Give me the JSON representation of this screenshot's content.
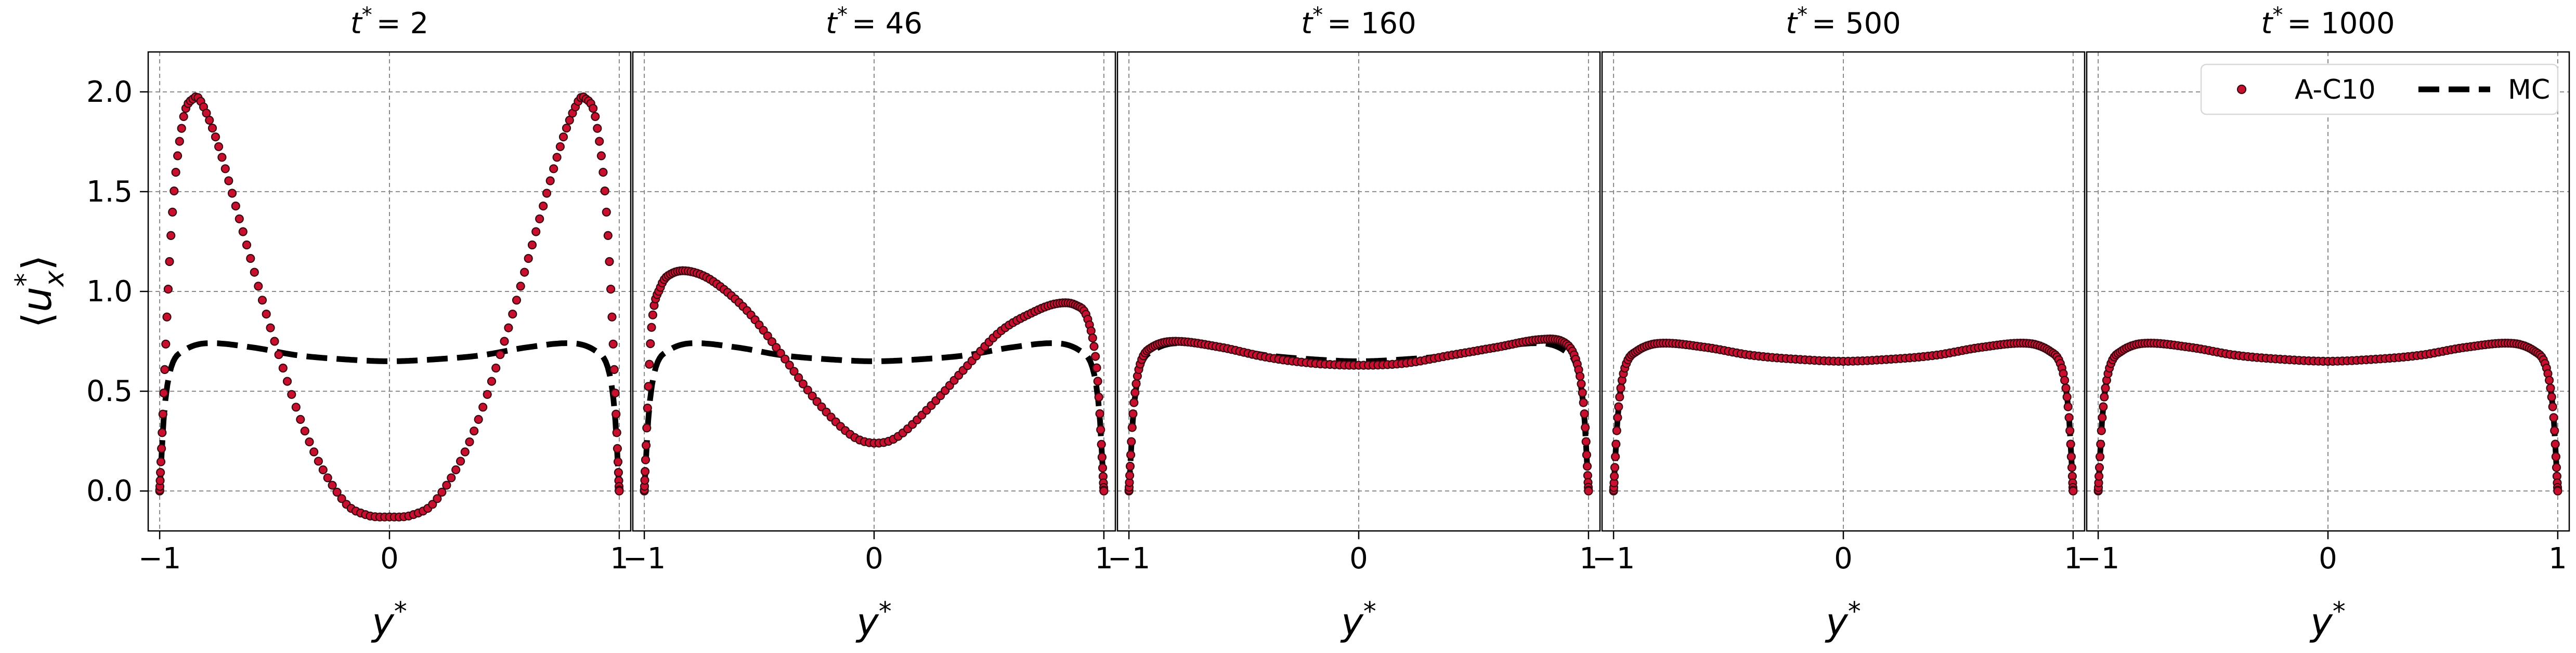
{
  "figure": {
    "ylabel_text": "⟨u*x⟩",
    "colors": {
      "ac10": "#c8102e",
      "ac10_edge": "#3a0a12",
      "mc": "#000000",
      "grid": "#8a8a8a"
    },
    "legend": {
      "placement": "top-right of last panel",
      "entries": [
        "A-C10",
        "MC"
      ]
    }
  },
  "chart_data": [
    {
      "type": "scatter+line",
      "title": "t* = 2",
      "xlabel": "y*",
      "ylabel": "⟨u*x⟩",
      "xlim": [
        -1.05,
        1.05
      ],
      "ylim": [
        -0.2,
        2.2
      ],
      "x_ticks": [
        -1,
        0,
        1
      ],
      "x_tick_labels": [
        "−1",
        "0",
        "1"
      ],
      "y_ticks": [
        0.0,
        0.5,
        1.0,
        1.5,
        2.0
      ],
      "y_tick_labels": [
        "0.0",
        "0.5",
        "1.0",
        "1.5",
        "2.0"
      ],
      "grid": true,
      "series": [
        {
          "name": "A-C10",
          "style": "markers",
          "x": [
            -1.0,
            -0.95,
            -0.9,
            -0.85,
            -0.82,
            -0.75,
            -0.65,
            -0.5,
            -0.35,
            -0.2,
            -0.1,
            0.0,
            0.1,
            0.2,
            0.35,
            0.5,
            0.65,
            0.75,
            0.82,
            0.85,
            0.9,
            0.95,
            1.0
          ],
          "y": [
            0.0,
            1.3,
            1.85,
            1.97,
            1.95,
            1.75,
            1.35,
            0.75,
            0.25,
            -0.05,
            -0.12,
            -0.13,
            -0.12,
            -0.05,
            0.25,
            0.75,
            1.35,
            1.75,
            1.95,
            1.97,
            1.85,
            1.3,
            0.0
          ]
        },
        {
          "name": "MC",
          "style": "dashed",
          "x": [
            -1.0,
            -0.98,
            -0.95,
            -0.9,
            -0.8,
            -0.6,
            -0.4,
            -0.2,
            0.0,
            0.2,
            0.4,
            0.6,
            0.8,
            0.9,
            0.95,
            0.98,
            1.0
          ],
          "y": [
            0.0,
            0.4,
            0.62,
            0.7,
            0.74,
            0.72,
            0.68,
            0.66,
            0.65,
            0.66,
            0.68,
            0.72,
            0.74,
            0.7,
            0.62,
            0.4,
            0.0
          ]
        }
      ]
    },
    {
      "type": "scatter+line",
      "title": "t* = 46",
      "xlabel": "y*",
      "xlim": [
        -1.05,
        1.05
      ],
      "ylim": [
        -0.2,
        2.2
      ],
      "x_ticks": [
        -1,
        0,
        1
      ],
      "x_tick_labels": [
        "−1",
        "0",
        "1"
      ],
      "grid": true,
      "series": [
        {
          "name": "A-C10",
          "style": "markers",
          "x": [
            -1.0,
            -0.97,
            -0.93,
            -0.88,
            -0.8,
            -0.7,
            -0.55,
            -0.4,
            -0.25,
            -0.1,
            0.0,
            0.1,
            0.25,
            0.4,
            0.55,
            0.7,
            0.8,
            0.88,
            0.93,
            0.97,
            1.0
          ],
          "y": [
            0.0,
            0.8,
            1.02,
            1.09,
            1.1,
            1.05,
            0.9,
            0.68,
            0.45,
            0.28,
            0.24,
            0.27,
            0.43,
            0.62,
            0.8,
            0.9,
            0.94,
            0.93,
            0.86,
            0.6,
            0.0
          ]
        },
        {
          "name": "MC",
          "style": "dashed",
          "x": [
            -1.0,
            -0.98,
            -0.95,
            -0.9,
            -0.8,
            -0.6,
            -0.4,
            -0.2,
            0.0,
            0.2,
            0.4,
            0.6,
            0.8,
            0.9,
            0.95,
            0.98,
            1.0
          ],
          "y": [
            0.0,
            0.4,
            0.62,
            0.7,
            0.74,
            0.72,
            0.68,
            0.66,
            0.65,
            0.66,
            0.68,
            0.72,
            0.74,
            0.7,
            0.62,
            0.4,
            0.0
          ]
        }
      ]
    },
    {
      "type": "scatter+line",
      "title": "t* = 160",
      "xlabel": "y*",
      "xlim": [
        -1.05,
        1.05
      ],
      "ylim": [
        -0.2,
        2.2
      ],
      "x_ticks": [
        -1,
        0,
        1
      ],
      "x_tick_labels": [
        "−1",
        "0",
        "1"
      ],
      "grid": true,
      "series": [
        {
          "name": "A-C10",
          "style": "markers",
          "x": [
            -1.0,
            -0.98,
            -0.95,
            -0.9,
            -0.8,
            -0.6,
            -0.4,
            -0.2,
            0.0,
            0.2,
            0.4,
            0.6,
            0.8,
            0.9,
            0.95,
            0.98,
            1.0
          ],
          "y": [
            0.0,
            0.42,
            0.64,
            0.72,
            0.75,
            0.72,
            0.67,
            0.64,
            0.63,
            0.64,
            0.68,
            0.72,
            0.76,
            0.74,
            0.64,
            0.42,
            0.0
          ]
        },
        {
          "name": "MC",
          "style": "dashed",
          "x": [
            -1.0,
            -0.98,
            -0.95,
            -0.9,
            -0.8,
            -0.6,
            -0.4,
            -0.2,
            0.0,
            0.2,
            0.4,
            0.6,
            0.8,
            0.9,
            0.95,
            0.98,
            1.0
          ],
          "y": [
            0.0,
            0.4,
            0.62,
            0.7,
            0.74,
            0.72,
            0.68,
            0.66,
            0.65,
            0.66,
            0.68,
            0.72,
            0.74,
            0.7,
            0.62,
            0.4,
            0.0
          ]
        }
      ]
    },
    {
      "type": "scatter+line",
      "title": "t* = 500",
      "xlabel": "y*",
      "xlim": [
        -1.05,
        1.05
      ],
      "ylim": [
        -0.2,
        2.2
      ],
      "x_ticks": [
        -1,
        0,
        1
      ],
      "x_tick_labels": [
        "−1",
        "0",
        "1"
      ],
      "grid": true,
      "series": [
        {
          "name": "A-C10",
          "style": "markers",
          "x": [
            -1.0,
            -0.98,
            -0.95,
            -0.9,
            -0.8,
            -0.6,
            -0.4,
            -0.2,
            0.0,
            0.2,
            0.4,
            0.6,
            0.8,
            0.9,
            0.95,
            0.98,
            1.0
          ],
          "y": [
            0.0,
            0.4,
            0.62,
            0.7,
            0.74,
            0.72,
            0.68,
            0.66,
            0.65,
            0.66,
            0.68,
            0.72,
            0.74,
            0.7,
            0.62,
            0.4,
            0.0
          ]
        },
        {
          "name": "MC",
          "style": "dashed",
          "x": [
            -1.0,
            -0.98,
            -0.95,
            -0.9,
            -0.8,
            -0.6,
            -0.4,
            -0.2,
            0.0,
            0.2,
            0.4,
            0.6,
            0.8,
            0.9,
            0.95,
            0.98,
            1.0
          ],
          "y": [
            0.0,
            0.4,
            0.62,
            0.7,
            0.74,
            0.72,
            0.68,
            0.66,
            0.65,
            0.66,
            0.68,
            0.72,
            0.74,
            0.7,
            0.62,
            0.4,
            0.0
          ]
        }
      ]
    },
    {
      "type": "scatter+line",
      "title": "t* = 1000",
      "xlabel": "y*",
      "xlim": [
        -1.05,
        1.05
      ],
      "ylim": [
        -0.2,
        2.2
      ],
      "x_ticks": [
        -1,
        0,
        1
      ],
      "x_tick_labels": [
        "−1",
        "0",
        "1"
      ],
      "grid": true,
      "series": [
        {
          "name": "A-C10",
          "style": "markers",
          "x": [
            -1.0,
            -0.98,
            -0.95,
            -0.9,
            -0.8,
            -0.6,
            -0.4,
            -0.2,
            0.0,
            0.2,
            0.4,
            0.6,
            0.8,
            0.9,
            0.95,
            0.98,
            1.0
          ],
          "y": [
            0.0,
            0.4,
            0.62,
            0.7,
            0.74,
            0.72,
            0.68,
            0.66,
            0.65,
            0.66,
            0.68,
            0.72,
            0.74,
            0.7,
            0.62,
            0.4,
            0.0
          ]
        },
        {
          "name": "MC",
          "style": "dashed",
          "x": [
            -1.0,
            -0.98,
            -0.95,
            -0.9,
            -0.8,
            -0.6,
            -0.4,
            -0.2,
            0.0,
            0.2,
            0.4,
            0.6,
            0.8,
            0.9,
            0.95,
            0.98,
            1.0
          ],
          "y": [
            0.0,
            0.4,
            0.62,
            0.7,
            0.74,
            0.72,
            0.68,
            0.66,
            0.65,
            0.66,
            0.68,
            0.72,
            0.74,
            0.7,
            0.62,
            0.4,
            0.0
          ]
        }
      ]
    }
  ]
}
